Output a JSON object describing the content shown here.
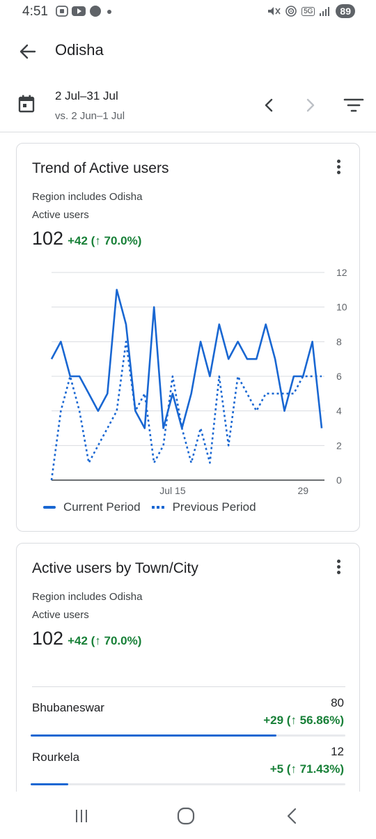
{
  "status": {
    "time": "4:51",
    "network": "5G",
    "battery": "89"
  },
  "header": {
    "title": "Odisha"
  },
  "date_range": {
    "main": "2 Jul–31 Jul",
    "compare": "vs. 2 Jun–1 Jul"
  },
  "trend_card": {
    "title": "Trend of Active users",
    "subtitle": "Region includes Odisha",
    "metric_label": "Active users",
    "value": "102",
    "delta": "+42 (↑ 70.0%)",
    "legend_current": "Current Period",
    "legend_previous": "Previous Period"
  },
  "chart_data": {
    "type": "line",
    "x_tick_labels": [
      "Jul 15",
      "29"
    ],
    "y_ticks": [
      0,
      2,
      4,
      6,
      8,
      10,
      12
    ],
    "ylim": [
      0,
      12
    ],
    "series": [
      {
        "name": "Current Period",
        "style": "solid",
        "values": [
          7,
          8,
          6,
          6,
          5,
          4,
          5,
          11,
          9,
          4,
          3,
          10,
          3,
          5,
          3,
          5,
          8,
          6,
          9,
          7,
          8,
          7,
          7,
          9,
          7,
          4,
          6,
          6,
          8,
          3
        ]
      },
      {
        "name": "Previous Period",
        "style": "dashed",
        "values": [
          0,
          4,
          6,
          4,
          1,
          2,
          3,
          4,
          8,
          4,
          5,
          1,
          2,
          6,
          3,
          1,
          3,
          1,
          6,
          2,
          6,
          5,
          4,
          5,
          5,
          5,
          5,
          6,
          6,
          6
        ]
      }
    ],
    "colors": {
      "line": "#1967d2",
      "grid": "#dadce0"
    }
  },
  "city_card": {
    "title": "Active users by Town/City",
    "subtitle": "Region includes Odisha",
    "metric_label": "Active users",
    "value": "102",
    "delta": "+42 (↑ 70.0%)",
    "rows": [
      {
        "name": "Bhubaneswar",
        "value": "80",
        "delta": "+29 (↑ 56.86%)",
        "share": 0.78
      },
      {
        "name": "Rourkela",
        "value": "12",
        "delta": "+5 (↑ 71.43%)",
        "share": 0.12
      }
    ]
  }
}
